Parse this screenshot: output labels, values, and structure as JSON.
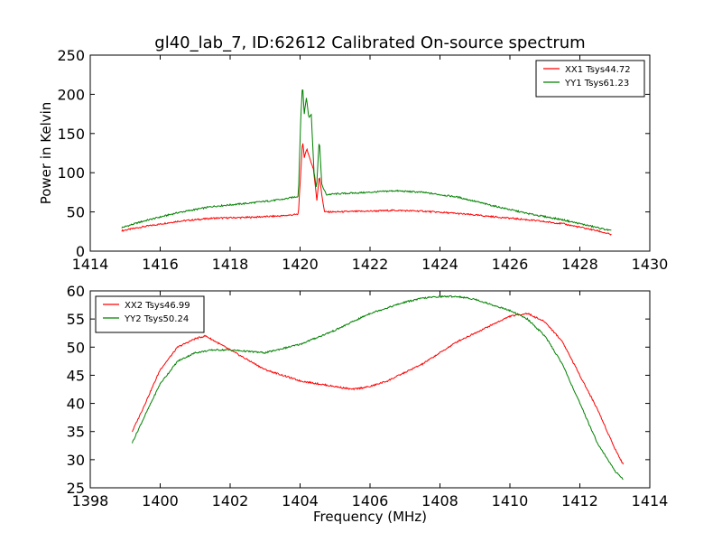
{
  "chart_data": {
    "title": "gl40_lab_7, ID:62612 Calibrated On-source spectrum",
    "panels": [
      {
        "type": "line",
        "xlabel": "",
        "ylabel": "Power in Kelvin",
        "xlim": [
          1414,
          1430
        ],
        "ylim": [
          0,
          250
        ],
        "xticks": [
          "1414",
          "1416",
          "1418",
          "1420",
          "1422",
          "1424",
          "1426",
          "1428",
          "1430"
        ],
        "yticks": [
          "0",
          "50",
          "100",
          "150",
          "200",
          "250"
        ],
        "legend_position": "top-right",
        "series": [
          {
            "name": "XX1 Tsys44.72",
            "color": "#ff0000",
            "x": [
              1414.9,
              1415.5,
              1416.5,
              1417.5,
              1418.5,
              1419.5,
              1419.95,
              1420.02,
              1420.07,
              1420.12,
              1420.2,
              1420.28,
              1420.38,
              1420.48,
              1420.55,
              1420.62,
              1420.7,
              1421.0,
              1422.0,
              1422.7,
              1423.5,
              1424.5,
              1425.5,
              1426.5,
              1427.5,
              1428.5,
              1428.9
            ],
            "y": [
              26,
              31,
              38,
              42,
              43,
              45,
              47,
              100,
              142,
              120,
              130,
              118,
              105,
              65,
              97,
              72,
              50,
              50,
              51,
              52,
              51,
              48,
              44,
              40,
              35,
              26,
              21
            ]
          },
          {
            "name": "YY1 Tsys61.23",
            "color": "#008000",
            "x": [
              1414.9,
              1415.5,
              1416.5,
              1417.5,
              1418.5,
              1419.5,
              1419.95,
              1420.02,
              1420.07,
              1420.12,
              1420.18,
              1420.25,
              1420.32,
              1420.4,
              1420.47,
              1420.55,
              1420.62,
              1420.75,
              1421.0,
              1422.0,
              1422.7,
              1423.5,
              1424.5,
              1425.5,
              1426.5,
              1427.5,
              1428.5,
              1428.9
            ],
            "y": [
              30,
              38,
              49,
              57,
              61,
              66,
              70,
              170,
              213,
              175,
              196,
              170,
              175,
              100,
              80,
              144,
              85,
              72,
              73,
              75,
              77,
              75,
              69,
              58,
              48,
              40,
              30,
              26
            ]
          }
        ]
      },
      {
        "type": "line",
        "xlabel": "Frequency (MHz)",
        "ylabel": "",
        "xlim": [
          1398,
          1414
        ],
        "ylim": [
          25,
          60
        ],
        "xticks": [
          "1398",
          "1400",
          "1402",
          "1404",
          "1406",
          "1408",
          "1410",
          "1412",
          "1414"
        ],
        "yticks": [
          "25",
          "30",
          "35",
          "40",
          "45",
          "50",
          "55",
          "60"
        ],
        "legend_position": "top-left",
        "series": [
          {
            "name": "XX2 Tsys46.99",
            "color": "#ff0000",
            "x": [
              1399.2,
              1399.5,
              1400.0,
              1400.5,
              1401.0,
              1401.3,
              1402.0,
              1403.0,
              1404.0,
              1405.0,
              1405.5,
              1406.0,
              1406.5,
              1407.0,
              1407.5,
              1408.0,
              1408.5,
              1409.0,
              1409.5,
              1410.0,
              1410.5,
              1411.0,
              1411.5,
              1412.0,
              1412.5,
              1413.0,
              1413.25
            ],
            "y": [
              35,
              39,
              46,
              50,
              51.5,
              52,
              49.5,
              46,
              44,
              43,
              42.5,
              43,
              44,
              45.5,
              47,
              49,
              51,
              52.5,
              54,
              55.5,
              56,
              54.5,
              51,
              45,
              39,
              32,
              29
            ]
          },
          {
            "name": "YY2 Tsys50.24",
            "color": "#008000",
            "x": [
              1399.2,
              1399.5,
              1400.0,
              1400.5,
              1401.0,
              1401.5,
              1402.0,
              1403.0,
              1404.0,
              1405.0,
              1406.0,
              1407.0,
              1407.5,
              1408.0,
              1408.5,
              1409.0,
              1409.5,
              1410.0,
              1410.5,
              1411.0,
              1411.5,
              1412.0,
              1412.5,
              1413.0,
              1413.25
            ],
            "y": [
              33,
              37,
              43.5,
              47.5,
              49,
              49.5,
              49.5,
              49,
              50.5,
              53,
              56,
              58,
              58.7,
              59,
              59,
              58.5,
              57.5,
              56.5,
              55,
              52,
              47,
              40,
              33,
              28,
              26.5
            ]
          }
        ]
      }
    ]
  }
}
